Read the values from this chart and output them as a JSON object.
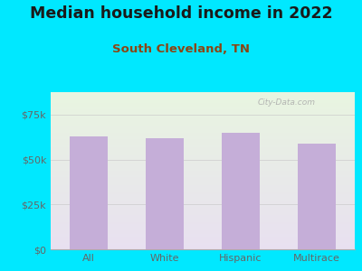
{
  "title": "Median household income in 2022",
  "subtitle": "South Cleveland, TN",
  "categories": [
    "All",
    "White",
    "Hispanic",
    "Multirace"
  ],
  "values": [
    63000,
    62000,
    65000,
    59000
  ],
  "bar_color": "#c5aed8",
  "title_color": "#1a1a1a",
  "subtitle_color": "#8b4513",
  "tick_label_color": "#666666",
  "background_outer": "#00e8ff",
  "background_plot_topleft": "#e8f5e0",
  "background_plot_bottomright": "#e8e0f0",
  "ylim": [
    0,
    87500
  ],
  "yticks": [
    0,
    25000,
    50000,
    75000
  ],
  "ytick_labels": [
    "$0",
    "$25k",
    "$50k",
    "$75k"
  ],
  "watermark": "City-Data.com",
  "title_fontsize": 12.5,
  "subtitle_fontsize": 9.5,
  "tick_fontsize": 8,
  "bar_width": 0.5
}
